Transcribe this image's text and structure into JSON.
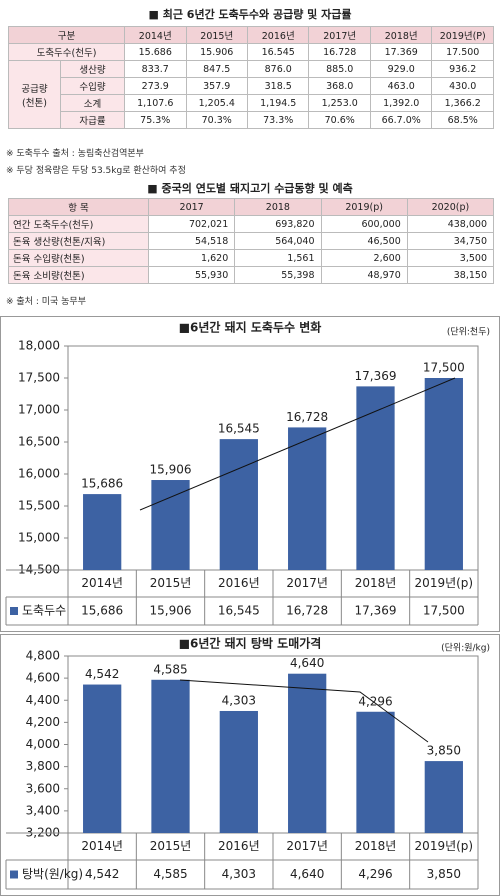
{
  "table1": {
    "title": "■ 최근 6년간 도축두수와 공급량 및 자급률",
    "columns": [
      "구분",
      "2014년",
      "2015년",
      "2016년",
      "2017년",
      "2018년",
      "2019년(P)"
    ],
    "group_label": [
      "공급량",
      "(천톤)"
    ],
    "rows": [
      {
        "label": "도축두수(천두)",
        "cells": [
          "15.686",
          "15.906",
          "16.545",
          "16.728",
          "17.369",
          "17.500"
        ]
      },
      {
        "label": "생산량",
        "cells": [
          "833.7",
          "847.5",
          "876.0",
          "885.0",
          "929.0",
          "936.2"
        ]
      },
      {
        "label": "수입량",
        "cells": [
          "273.9",
          "357.9",
          "318.5",
          "368.0",
          "463.0",
          "430.0"
        ]
      },
      {
        "label": "소계",
        "cells": [
          "1,107.6",
          "1,205.4",
          "1,194.5",
          "1,253.0",
          "1,392.0",
          "1,366.2"
        ]
      },
      {
        "label": "자급률",
        "cells": [
          "75.3%",
          "70.3%",
          "73.3%",
          "70.6%",
          "66.7.0%",
          "68.5%"
        ]
      }
    ],
    "notes": [
      "※ 도축두수 출처 : 농림축산검역본부",
      "※ 두당 정육량은 두당 53.5kg로 환산하여 추정"
    ]
  },
  "table2": {
    "title": "■ 중국의 연도별 돼지고기 수급동향 및 예측",
    "columns": [
      "항 목",
      "2017",
      "2018",
      "2019(p)",
      "2020(p)"
    ],
    "rows": [
      {
        "label": "연간 도축두수(천두)",
        "cells": [
          "702,021",
          "693,820",
          "600,000",
          "438,000"
        ]
      },
      {
        "label": "돈육 생산량(천톤/지육)",
        "cells": [
          "54,518",
          "564,040",
          "46,500",
          "34,750"
        ]
      },
      {
        "label": "돈육 수입량(천톤)",
        "cells": [
          "1,620",
          "1,561",
          "2,600",
          "3,500"
        ]
      },
      {
        "label": "돈육 소비량(천톤)",
        "cells": [
          "55,930",
          "55,398",
          "48,970",
          "38,150"
        ]
      }
    ],
    "notes": [
      "※ 출처 : 미국 농무부"
    ]
  },
  "chart_data": [
    {
      "type": "bar",
      "title": "■6년간 돼지 도축두수 변화",
      "unit": "(단위:천두)",
      "categories": [
        "2014년",
        "2015년",
        "2016년",
        "2017년",
        "2018년",
        "2019년(p)"
      ],
      "series": [
        {
          "name": "도축두수",
          "color": "#3d62a3",
          "values": [
            15686,
            15906,
            16545,
            16728,
            17369,
            17500
          ],
          "value_labels": [
            "15,686",
            "15,906",
            "16,545",
            "16,728",
            "17,369",
            "17,500"
          ]
        }
      ],
      "ylim": [
        14500,
        18000
      ],
      "yticks": [
        {
          "value": 14500,
          "label": "14,500"
        },
        {
          "value": 15000,
          "label": "15,000"
        },
        {
          "value": 15500,
          "label": "15,500"
        },
        {
          "value": 16000,
          "label": "16,000"
        },
        {
          "value": 16500,
          "label": "16,500"
        },
        {
          "value": 17000,
          "label": "17,000"
        },
        {
          "value": 17500,
          "label": "17,500"
        },
        {
          "value": 18000,
          "label": "18,000"
        }
      ]
    },
    {
      "type": "bar",
      "title": "■6년간 돼지 탕박 도매가격",
      "unit": "(단위:원/kg)",
      "categories": [
        "2014년",
        "2015년",
        "2016년",
        "2017년",
        "2018년",
        "2019년(p)"
      ],
      "series": [
        {
          "name": "탕박(원/kg)",
          "color": "#3d62a3",
          "values": [
            4542,
            4585,
            4303,
            4640,
            4296,
            3850
          ],
          "value_labels": [
            "4,542",
            "4,585",
            "4,303",
            "4,640",
            "4,296",
            "3,850"
          ]
        }
      ],
      "ylim": [
        3200,
        4800
      ],
      "yticks": [
        {
          "value": 3200,
          "label": "3,200"
        },
        {
          "value": 3400,
          "label": "3,400"
        },
        {
          "value": 3600,
          "label": "3,600"
        },
        {
          "value": 3800,
          "label": "3,800"
        },
        {
          "value": 4000,
          "label": "4,000"
        },
        {
          "value": 4200,
          "label": "4,200"
        },
        {
          "value": 4400,
          "label": "4,400"
        },
        {
          "value": 4600,
          "label": "4,600"
        },
        {
          "value": 4800,
          "label": "4,800"
        }
      ]
    }
  ]
}
